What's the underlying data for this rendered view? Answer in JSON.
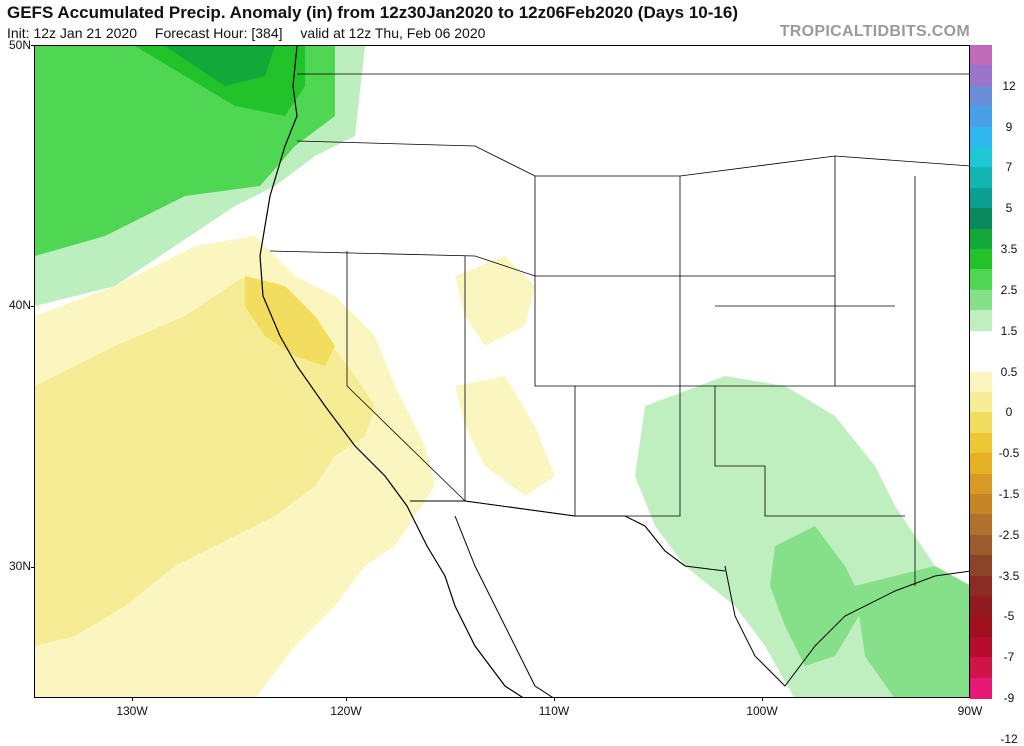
{
  "header": {
    "title": "GEFS Accumulated Precip. Anomaly (in) from 12z30Jan2020 to 12z06Feb2020 (Days 10-16)",
    "init": "Init: 12z Jan 21 2020",
    "forecast_hour": "Forecast Hour: [384]",
    "valid": "valid at 12z Thu, Feb 06 2020",
    "source": "TROPICALTIDBITS.COM"
  },
  "map": {
    "lat_labels": [
      "50N",
      "40N",
      "30N"
    ],
    "lon_labels": [
      "130W",
      "120W",
      "110W",
      "100W",
      "90W"
    ]
  },
  "colorbar": {
    "labels": [
      "12",
      "9",
      "7",
      "5",
      "3.5",
      "2.5",
      "1.5",
      "0.5",
      "0",
      "-0.5",
      "-1.5",
      "-2.5",
      "-3.5",
      "-5",
      "-7",
      "-9",
      "-12"
    ],
    "colors": [
      "#c06ab8",
      "#9b75c9",
      "#6a8fd8",
      "#4aa0e6",
      "#2fb8ef",
      "#1fc6d8",
      "#12b5b0",
      "#0a9f92",
      "#0a8a5c",
      "#12a83a",
      "#22c22a",
      "#4fd653",
      "#86e089",
      "#c0efbf",
      "#ffffff",
      "#ffffff",
      "#fbf5bf",
      "#f6ec96",
      "#f2dd5e",
      "#ecc834",
      "#e5b023",
      "#d89a23",
      "#c68628",
      "#b0702e",
      "#9c5b2d",
      "#8c4428",
      "#8a2b24",
      "#901c22",
      "#a0111e",
      "#b70d2c",
      "#d0144a",
      "#e61a76"
    ]
  }
}
